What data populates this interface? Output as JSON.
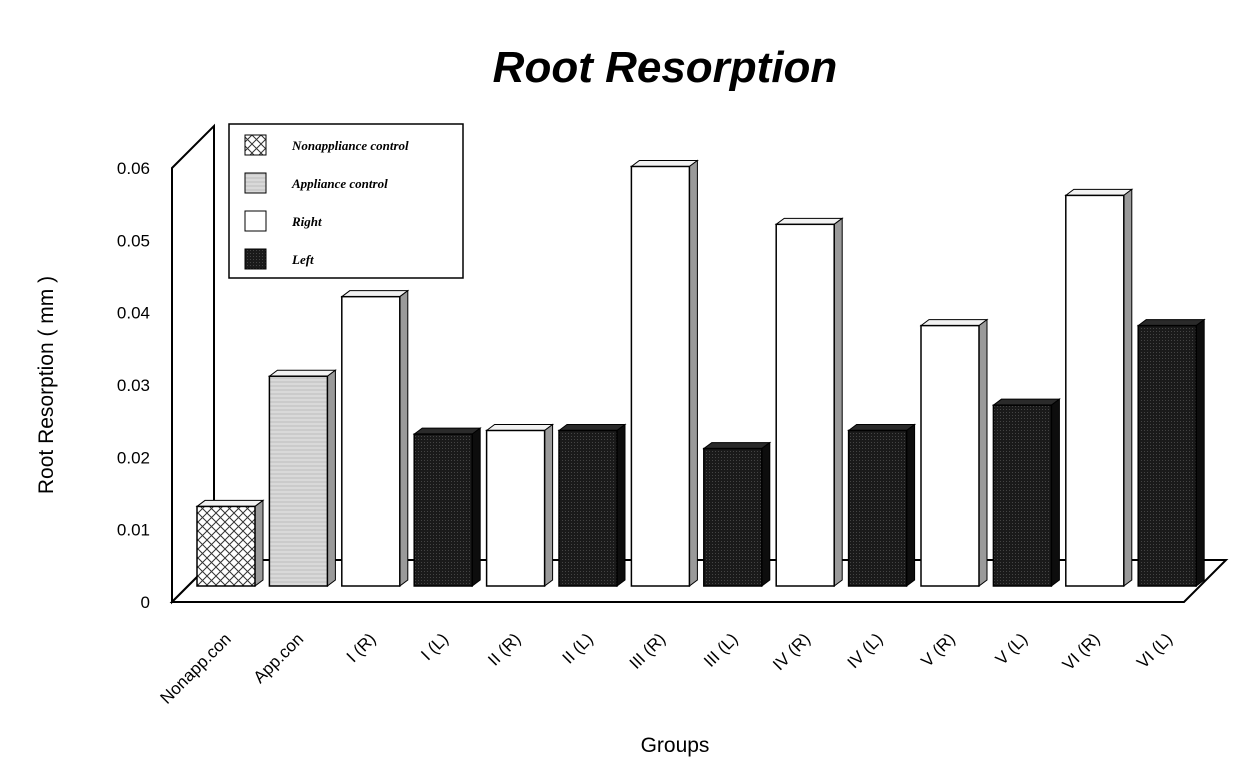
{
  "chart_data": {
    "type": "bar",
    "title": "Root Resorption",
    "xlabel": "Groups",
    "ylabel": "Root Resorption ( mm )",
    "ylim": [
      0,
      0.06
    ],
    "yticks": [
      "0",
      "0.01",
      "0.02",
      "0.03",
      "0.04",
      "0.05",
      "0.06"
    ],
    "grid": false,
    "legend_position": "top-left",
    "categories": [
      "Nonapp.con",
      "App.con",
      "I (R)",
      "I (L)",
      "II (R)",
      "II (L)",
      "III (R)",
      "III (L)",
      "IV (R)",
      "IV (L)",
      "V (R)",
      "V (L)",
      "VI (R)",
      "VI (L)"
    ],
    "values": [
      0.011,
      0.029,
      0.04,
      0.021,
      0.0215,
      0.0215,
      0.058,
      0.019,
      0.05,
      0.0215,
      0.036,
      0.025,
      0.054,
      0.036
    ],
    "series_keys": [
      "nonapp",
      "app",
      "right",
      "left",
      "right",
      "left",
      "right",
      "left",
      "right",
      "left",
      "right",
      "left",
      "right",
      "left"
    ],
    "legend": [
      {
        "key": "nonapp",
        "label": "Nonappliance control"
      },
      {
        "key": "app",
        "label": "Appliance control"
      },
      {
        "key": "right",
        "label": "Right"
      },
      {
        "key": "left",
        "label": "Left"
      }
    ],
    "colors": {
      "nonapp": "#ffffff",
      "app": "#d6d6d6",
      "right": "#ffffff",
      "left": "#1a1a1a",
      "outline": "#000000"
    }
  }
}
